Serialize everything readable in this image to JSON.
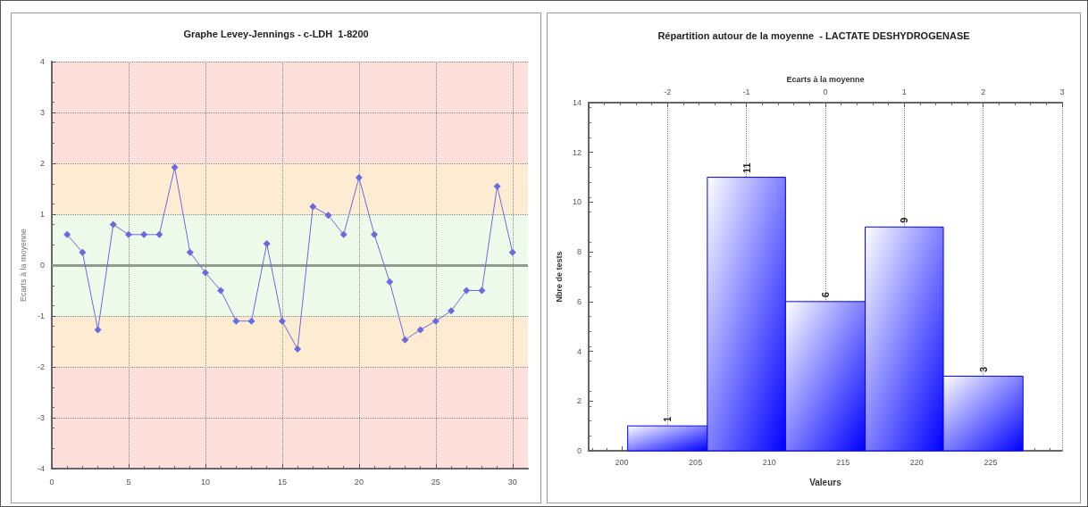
{
  "chart_data": [
    {
      "type": "line",
      "title": "Graphe Levey-Jennings - c-LDH  1-8200",
      "ylabel": "Ecarts à la moyenne",
      "x": [
        1,
        2,
        3,
        4,
        5,
        6,
        7,
        8,
        9,
        10,
        11,
        12,
        13,
        14,
        15,
        16,
        17,
        18,
        19,
        20,
        21,
        22,
        23,
        24,
        25,
        26,
        27,
        28,
        29,
        30
      ],
      "series": [
        {
          "color": "#6a6ae0",
          "values": [
            0.6,
            0.25,
            -1.27,
            0.8,
            0.6,
            0.6,
            0.6,
            1.92,
            0.25,
            -0.15,
            -0.5,
            -1.1,
            -1.1,
            0.42,
            -1.1,
            -1.65,
            1.15,
            0.98,
            0.6,
            1.72,
            0.6,
            -0.33,
            -1.47,
            -1.27,
            -1.1,
            -0.9,
            -0.5,
            -0.5,
            1.55,
            0.25
          ]
        }
      ],
      "xlim": [
        0,
        31
      ],
      "xticks": [
        0,
        5,
        10,
        15,
        20,
        25,
        30
      ],
      "ylim": [
        -4,
        4
      ],
      "yticks": [
        -4,
        -3,
        -2,
        -1,
        0,
        1,
        2,
        3,
        4
      ],
      "bands": [
        {
          "axis": "y",
          "from": 2,
          "to": 4,
          "color": "#fde0dc"
        },
        {
          "axis": "y",
          "from": 1,
          "to": 2,
          "color": "#fdebd2"
        },
        {
          "axis": "y",
          "from": -1,
          "to": 1,
          "color": "#eefbea"
        },
        {
          "axis": "y",
          "from": -2,
          "to": -1,
          "color": "#fdebd2"
        },
        {
          "axis": "y",
          "from": -4,
          "to": -2,
          "color": "#fde0dc"
        }
      ],
      "ref_lines": [
        {
          "axis": "y",
          "value": 0,
          "color": "#8f9d8f",
          "line_style": "solid"
        }
      ],
      "grid": true,
      "marker": "diamond",
      "line_style": "solid"
    },
    {
      "type": "histogram",
      "title": "Répartition autour de la moyenne  - LACTATE DESHYDROGENASE",
      "xlabel": "Valeurs",
      "ylabel": "Nbre de tests",
      "x2label": "Ecarts à la moyenne",
      "bins": [
        200.4,
        205.8,
        211.1,
        216.5,
        221.8,
        227.2
      ],
      "values": [
        1,
        11,
        6,
        9,
        3
      ],
      "color": "#0000ff",
      "xlim": [
        197.75,
        229.85
      ],
      "xticks": [
        200,
        205,
        210,
        215,
        220,
        225
      ],
      "x2lim": [
        -3,
        3
      ],
      "x2ticks": [
        {
          "value": -3,
          "label": null
        },
        -2,
        -1,
        0,
        1,
        2,
        3
      ],
      "ylim": [
        0,
        14
      ],
      "yticks": [
        0,
        2,
        4,
        6,
        8,
        10,
        12,
        14
      ],
      "grid": "x2",
      "data_labels": true
    }
  ]
}
